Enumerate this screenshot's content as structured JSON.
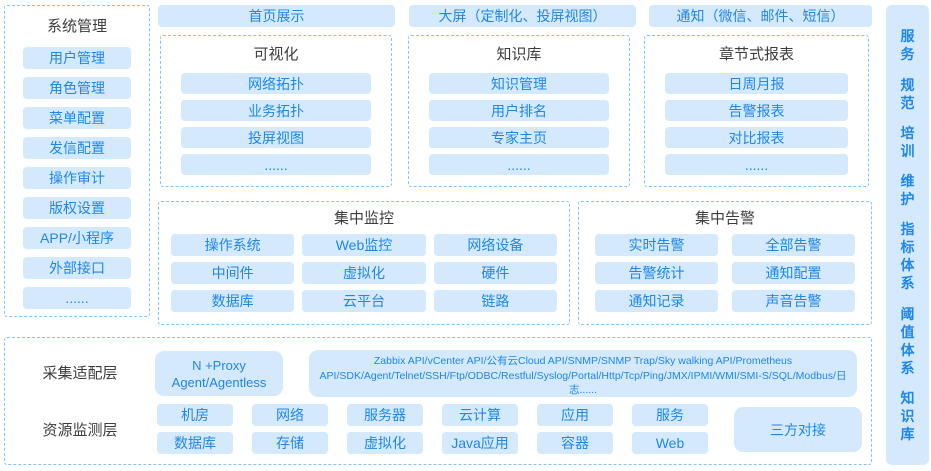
{
  "colors": {
    "pill_background": "#d4e9fc",
    "pill_text": "#1e87e8",
    "dashed_border": "#85c3f3",
    "heading_text": "#3d3d3d"
  },
  "left_sidebar": {
    "title": "系统管理",
    "items": [
      "用户管理",
      "角色管理",
      "菜单配置",
      "发信配置",
      "操作审计",
      "版权设置",
      "APP/小程序",
      "外部接口",
      "......"
    ]
  },
  "top_bar": {
    "items": [
      "首页展示",
      "大屏（定制化、投屏视图）",
      "通知（微信、邮件、短信）"
    ]
  },
  "panels": [
    {
      "title": "可视化",
      "items": [
        "网络拓扑",
        "业务拓扑",
        "投屏视图",
        "......"
      ]
    },
    {
      "title": "知识库",
      "items": [
        "知识管理",
        "用户排名",
        "专家主页",
        "......"
      ]
    },
    {
      "title": "章节式报表",
      "items": [
        "日周月报",
        "告警报表",
        "对比报表",
        "......"
      ]
    }
  ],
  "monitor_panel": {
    "title": "集中监控",
    "items": [
      "操作系统",
      "Web监控",
      "网络设备",
      "中间件",
      "虚拟化",
      "硬件",
      "数据库",
      "云平台",
      "链路"
    ]
  },
  "alarm_panel": {
    "title": "集中告警",
    "items": [
      "实时告警",
      "全部告警",
      "告警统计",
      "通知配置",
      "通知记录",
      "声音告警"
    ]
  },
  "right_sidebar": {
    "items": [
      "服务",
      "规范",
      "培训",
      "维护",
      "指标体系",
      "阈值体系",
      "知识库"
    ]
  },
  "bottom": {
    "adapter_layer": {
      "label": "采集适配层",
      "proxy_line1": "N +Proxy",
      "proxy_line2": "Agent/Agentless",
      "api_text": "Zabbix API/vCenter API/公有云Cloud API/SNMP/SNMP Trap/Sky walking API/Prometheus API/SDK/Agent/Telnet/SSH/Ftp/ODBC/Restful/Syslog/Portal/Http/Tcp/Ping/JMX/IPMI/WMI/SMI-S/SQL/Modbus/日志......"
    },
    "resource_layer": {
      "label": "资源监测层",
      "boxes": [
        "机房",
        "网络",
        "服务器",
        "云计算",
        "应用",
        "服务",
        "数据库",
        "存储",
        "虚拟化",
        "Java应用",
        "容器",
        "Web"
      ],
      "third_party": "三方对接"
    }
  }
}
